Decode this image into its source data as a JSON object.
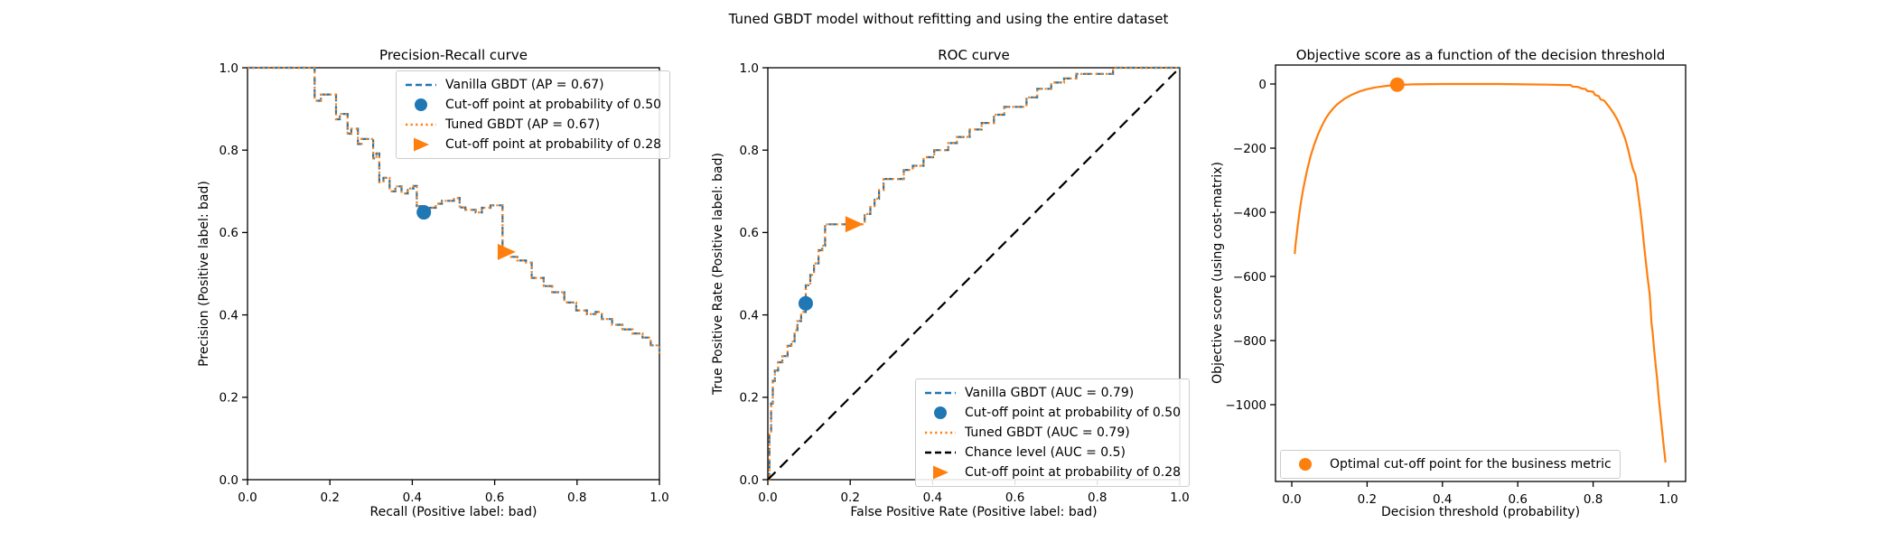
{
  "figure": {
    "title": "Tuned GBDT model without refitting and using the entire dataset"
  },
  "colors": {
    "vanilla_blue": "#1f77b4",
    "tuned_orange": "#ff7f0e",
    "chance_black": "#000000",
    "spine": "#000000",
    "legend_border": "#cccccc"
  },
  "chart_data": [
    {
      "type": "line",
      "title": "Precision-Recall curve",
      "xlabel": "Recall (Positive label: bad)",
      "ylabel": "Precision (Positive label: bad)",
      "xlim": [
        0,
        1
      ],
      "ylim": [
        0,
        1
      ],
      "grid": false,
      "legend_position": "top-right",
      "xticks": {
        "values": [
          0,
          0.2,
          0.4,
          0.6,
          0.8,
          1.0
        ],
        "labels": [
          "0.0",
          "0.2",
          "0.4",
          "0.6",
          "0.8",
          "1.0"
        ]
      },
      "yticks": {
        "values": [
          0,
          0.2,
          0.4,
          0.6,
          0.8,
          1.0
        ],
        "labels": [
          "0.0",
          "0.2",
          "0.4",
          "0.6",
          "0.8",
          "1.0"
        ]
      },
      "curve": [
        [
          0,
          1
        ],
        [
          0.163,
          1
        ],
        [
          0.163,
          0.92
        ],
        [
          0.178,
          0.92
        ],
        [
          0.178,
          0.935
        ],
        [
          0.215,
          0.935
        ],
        [
          0.215,
          0.875
        ],
        [
          0.224,
          0.875
        ],
        [
          0.224,
          0.888
        ],
        [
          0.243,
          0.888
        ],
        [
          0.243,
          0.84
        ],
        [
          0.252,
          0.84
        ],
        [
          0.252,
          0.852
        ],
        [
          0.268,
          0.852
        ],
        [
          0.268,
          0.815
        ],
        [
          0.277,
          0.815
        ],
        [
          0.277,
          0.827
        ],
        [
          0.305,
          0.827
        ],
        [
          0.305,
          0.78
        ],
        [
          0.313,
          0.78
        ],
        [
          0.313,
          0.792
        ],
        [
          0.32,
          0.792
        ],
        [
          0.32,
          0.722
        ],
        [
          0.33,
          0.722
        ],
        [
          0.33,
          0.733
        ],
        [
          0.345,
          0.733
        ],
        [
          0.345,
          0.7
        ],
        [
          0.359,
          0.7
        ],
        [
          0.359,
          0.712
        ],
        [
          0.374,
          0.712
        ],
        [
          0.374,
          0.695
        ],
        [
          0.389,
          0.695
        ],
        [
          0.389,
          0.707
        ],
        [
          0.403,
          0.707
        ],
        [
          0.403,
          0.713
        ],
        [
          0.411,
          0.713
        ],
        [
          0.411,
          0.664
        ],
        [
          0.425,
          0.664
        ],
        [
          0.425,
          0.649
        ],
        [
          0.443,
          0.649
        ],
        [
          0.443,
          0.66
        ],
        [
          0.457,
          0.66
        ],
        [
          0.457,
          0.67
        ],
        [
          0.472,
          0.67
        ],
        [
          0.472,
          0.677
        ],
        [
          0.501,
          0.677
        ],
        [
          0.501,
          0.684
        ],
        [
          0.515,
          0.684
        ],
        [
          0.515,
          0.661
        ],
        [
          0.529,
          0.661
        ],
        [
          0.529,
          0.655
        ],
        [
          0.554,
          0.655
        ],
        [
          0.554,
          0.649
        ],
        [
          0.569,
          0.649
        ],
        [
          0.569,
          0.66
        ],
        [
          0.59,
          0.66
        ],
        [
          0.59,
          0.666
        ],
        [
          0.619,
          0.666
        ],
        [
          0.619,
          0.553
        ],
        [
          0.64,
          0.553
        ],
        [
          0.64,
          0.541
        ],
        [
          0.655,
          0.541
        ],
        [
          0.655,
          0.532
        ],
        [
          0.676,
          0.532
        ],
        [
          0.676,
          0.527
        ],
        [
          0.69,
          0.527
        ],
        [
          0.69,
          0.49
        ],
        [
          0.719,
          0.49
        ],
        [
          0.719,
          0.47
        ],
        [
          0.74,
          0.47
        ],
        [
          0.74,
          0.455
        ],
        [
          0.769,
          0.455
        ],
        [
          0.769,
          0.43
        ],
        [
          0.798,
          0.43
        ],
        [
          0.798,
          0.411
        ],
        [
          0.824,
          0.411
        ],
        [
          0.824,
          0.402
        ],
        [
          0.845,
          0.402
        ],
        [
          0.845,
          0.407
        ],
        [
          0.86,
          0.407
        ],
        [
          0.86,
          0.39
        ],
        [
          0.885,
          0.39
        ],
        [
          0.885,
          0.376
        ],
        [
          0.91,
          0.376
        ],
        [
          0.91,
          0.365
        ],
        [
          0.935,
          0.365
        ],
        [
          0.935,
          0.355
        ],
        [
          0.959,
          0.355
        ],
        [
          0.959,
          0.345
        ],
        [
          0.979,
          0.345
        ],
        [
          0.979,
          0.326
        ],
        [
          1,
          0.326
        ],
        [
          1,
          0.302
        ]
      ],
      "series": [
        {
          "name": "Vanilla GBDT (AP = 0.67)",
          "style": "dashed",
          "color": "#1f77b4",
          "use_curve": true
        },
        {
          "name": "Tuned GBDT (AP = 0.67)",
          "style": "dotted",
          "color": "#ff7f0e",
          "use_curve": true
        }
      ],
      "markers": [
        {
          "shape": "circle",
          "color": "#1f77b4",
          "x": 0.428,
          "y": 0.649,
          "label": "Cut-off point at probability of 0.50"
        },
        {
          "shape": "triangle",
          "color": "#ff7f0e",
          "x": 0.627,
          "y": 0.553,
          "label": "Cut-off point at probability of 0.28"
        }
      ],
      "legend": [
        {
          "swatch": "dashed",
          "color": "#1f77b4",
          "label": "Vanilla GBDT (AP = 0.67)"
        },
        {
          "swatch": "circle",
          "color": "#1f77b4",
          "label": "Cut-off point at probability of 0.50"
        },
        {
          "swatch": "dotted",
          "color": "#ff7f0e",
          "label": "Tuned GBDT (AP = 0.67)"
        },
        {
          "swatch": "triangle",
          "color": "#ff7f0e",
          "label": "Cut-off point at probability of 0.28"
        }
      ]
    },
    {
      "type": "line",
      "title": "ROC curve",
      "xlabel": "False Positive Rate (Positive label: bad)",
      "ylabel": "True Positive Rate (Positive label: bad)",
      "xlim": [
        0,
        1
      ],
      "ylim": [
        0,
        1
      ],
      "grid": false,
      "legend_position": "bottom-right",
      "xticks": {
        "values": [
          0,
          0.2,
          0.4,
          0.6,
          0.8,
          1.0
        ],
        "labels": [
          "0.0",
          "0.2",
          "0.4",
          "0.6",
          "0.8",
          "1.0"
        ]
      },
      "yticks": {
        "values": [
          0,
          0.2,
          0.4,
          0.6,
          0.8,
          1.0
        ],
        "labels": [
          "0.0",
          "0.2",
          "0.4",
          "0.6",
          "0.8",
          "1.0"
        ]
      },
      "curve": [
        [
          0,
          0
        ],
        [
          0.004,
          0
        ],
        [
          0.004,
          0.11
        ],
        [
          0.008,
          0.11
        ],
        [
          0.008,
          0.185
        ],
        [
          0.012,
          0.185
        ],
        [
          0.012,
          0.24
        ],
        [
          0.017,
          0.24
        ],
        [
          0.017,
          0.265
        ],
        [
          0.025,
          0.265
        ],
        [
          0.025,
          0.285
        ],
        [
          0.035,
          0.285
        ],
        [
          0.035,
          0.3
        ],
        [
          0.048,
          0.3
        ],
        [
          0.048,
          0.325
        ],
        [
          0.057,
          0.325
        ],
        [
          0.057,
          0.335
        ],
        [
          0.065,
          0.335
        ],
        [
          0.065,
          0.363
        ],
        [
          0.072,
          0.363
        ],
        [
          0.072,
          0.385
        ],
        [
          0.081,
          0.385
        ],
        [
          0.081,
          0.407
        ],
        [
          0.092,
          0.407
        ],
        [
          0.092,
          0.472
        ],
        [
          0.103,
          0.472
        ],
        [
          0.103,
          0.497
        ],
        [
          0.112,
          0.497
        ],
        [
          0.112,
          0.525
        ],
        [
          0.123,
          0.525
        ],
        [
          0.123,
          0.557
        ],
        [
          0.132,
          0.557
        ],
        [
          0.132,
          0.568
        ],
        [
          0.139,
          0.568
        ],
        [
          0.139,
          0.62
        ],
        [
          0.235,
          0.62
        ],
        [
          0.235,
          0.645
        ],
        [
          0.249,
          0.645
        ],
        [
          0.249,
          0.662
        ],
        [
          0.259,
          0.662
        ],
        [
          0.259,
          0.682
        ],
        [
          0.27,
          0.682
        ],
        [
          0.27,
          0.703
        ],
        [
          0.281,
          0.703
        ],
        [
          0.281,
          0.73
        ],
        [
          0.33,
          0.73
        ],
        [
          0.33,
          0.752
        ],
        [
          0.352,
          0.752
        ],
        [
          0.352,
          0.762
        ],
        [
          0.378,
          0.762
        ],
        [
          0.378,
          0.783
        ],
        [
          0.404,
          0.783
        ],
        [
          0.404,
          0.8
        ],
        [
          0.438,
          0.8
        ],
        [
          0.438,
          0.817
        ],
        [
          0.459,
          0.817
        ],
        [
          0.459,
          0.832
        ],
        [
          0.49,
          0.832
        ],
        [
          0.49,
          0.85
        ],
        [
          0.519,
          0.85
        ],
        [
          0.519,
          0.866
        ],
        [
          0.549,
          0.866
        ],
        [
          0.549,
          0.886
        ],
        [
          0.574,
          0.886
        ],
        [
          0.574,
          0.905
        ],
        [
          0.628,
          0.905
        ],
        [
          0.628,
          0.928
        ],
        [
          0.654,
          0.928
        ],
        [
          0.654,
          0.949
        ],
        [
          0.688,
          0.949
        ],
        [
          0.688,
          0.964
        ],
        [
          0.719,
          0.964
        ],
        [
          0.719,
          0.974
        ],
        [
          0.749,
          0.974
        ],
        [
          0.749,
          0.985
        ],
        [
          0.838,
          0.985
        ],
        [
          0.838,
          1
        ],
        [
          1,
          1
        ]
      ],
      "series": [
        {
          "name": "Vanilla GBDT (AUC = 0.79)",
          "style": "dashed",
          "color": "#1f77b4",
          "use_curve": true
        },
        {
          "name": "Tuned GBDT (AUC = 0.79)",
          "style": "dotted",
          "color": "#ff7f0e",
          "use_curve": true
        },
        {
          "name": "Chance level (AUC = 0.5)",
          "style": "dashed-long",
          "color": "#000000",
          "points": [
            [
              0,
              0
            ],
            [
              1,
              1
            ]
          ]
        }
      ],
      "markers": [
        {
          "shape": "circle",
          "color": "#1f77b4",
          "x": 0.092,
          "y": 0.428,
          "label": "Cut-off point at probability of 0.50"
        },
        {
          "shape": "triangle",
          "color": "#ff7f0e",
          "x": 0.208,
          "y": 0.62,
          "label": "Cut-off point at probability of 0.28"
        }
      ],
      "legend": [
        {
          "swatch": "dashed",
          "color": "#1f77b4",
          "label": "Vanilla GBDT (AUC = 0.79)"
        },
        {
          "swatch": "circle",
          "color": "#1f77b4",
          "label": "Cut-off point at probability of 0.50"
        },
        {
          "swatch": "dotted",
          "color": "#ff7f0e",
          "label": "Tuned GBDT (AUC = 0.79)"
        },
        {
          "swatch": "dashed",
          "color": "#000000",
          "label": "Chance level (AUC = 0.5)"
        },
        {
          "swatch": "triangle",
          "color": "#ff7f0e",
          "label": "Cut-off point at probability of 0.28"
        }
      ]
    },
    {
      "type": "line",
      "title": "Objective score as a function of the decision threshold",
      "xlabel": "Decision threshold (probability)",
      "ylabel": "Objective score (using cost-matrix)",
      "xlim": [
        -0.045,
        1.045
      ],
      "ylim": [
        -1240,
        60
      ],
      "grid": false,
      "legend_position": "bottom-left",
      "xticks": {
        "values": [
          0,
          0.2,
          0.4,
          0.6,
          0.8,
          1.0
        ],
        "labels": [
          "0.0",
          "0.2",
          "0.4",
          "0.6",
          "0.8",
          "1.0"
        ]
      },
      "yticks": {
        "values": [
          0,
          -200,
          -400,
          -600,
          -800,
          -1000
        ],
        "labels": [
          "0",
          "−200",
          "−400",
          "−600",
          "−800",
          "−1000"
        ]
      },
      "curve": [
        [
          0.008,
          -530
        ],
        [
          0.01,
          -500
        ],
        [
          0.015,
          -450
        ],
        [
          0.02,
          -405
        ],
        [
          0.025,
          -365
        ],
        [
          0.03,
          -330
        ],
        [
          0.04,
          -272
        ],
        [
          0.05,
          -225
        ],
        [
          0.06,
          -188
        ],
        [
          0.07,
          -156
        ],
        [
          0.08,
          -130
        ],
        [
          0.09,
          -108
        ],
        [
          0.1,
          -90
        ],
        [
          0.11,
          -76
        ],
        [
          0.12,
          -64
        ],
        [
          0.14,
          -46
        ],
        [
          0.16,
          -33
        ],
        [
          0.18,
          -23
        ],
        [
          0.2,
          -16
        ],
        [
          0.22,
          -11
        ],
        [
          0.25,
          -6
        ],
        [
          0.28,
          -3
        ],
        [
          0.32,
          -1
        ],
        [
          0.4,
          0
        ],
        [
          0.55,
          0
        ],
        [
          0.62,
          -1
        ],
        [
          0.68,
          -2
        ],
        [
          0.72,
          -3
        ],
        [
          0.74,
          -3
        ],
        [
          0.745,
          -8
        ],
        [
          0.76,
          -9
        ],
        [
          0.77,
          -14
        ],
        [
          0.78,
          -16
        ],
        [
          0.785,
          -22
        ],
        [
          0.8,
          -24
        ],
        [
          0.805,
          -34
        ],
        [
          0.815,
          -38
        ],
        [
          0.82,
          -48
        ],
        [
          0.83,
          -52
        ],
        [
          0.835,
          -60
        ],
        [
          0.845,
          -75
        ],
        [
          0.855,
          -92
        ],
        [
          0.865,
          -112
        ],
        [
          0.875,
          -140
        ],
        [
          0.885,
          -170
        ],
        [
          0.893,
          -205
        ],
        [
          0.9,
          -240
        ],
        [
          0.905,
          -262
        ],
        [
          0.908,
          -272
        ],
        [
          0.912,
          -282
        ],
        [
          0.916,
          -310
        ],
        [
          0.92,
          -345
        ],
        [
          0.925,
          -390
        ],
        [
          0.93,
          -440
        ],
        [
          0.935,
          -500
        ],
        [
          0.94,
          -555
        ],
        [
          0.945,
          -608
        ],
        [
          0.95,
          -655
        ],
        [
          0.953,
          -705
        ],
        [
          0.955,
          -745
        ],
        [
          0.958,
          -775
        ],
        [
          0.962,
          -830
        ],
        [
          0.966,
          -875
        ],
        [
          0.97,
          -920
        ],
        [
          0.973,
          -960
        ],
        [
          0.976,
          -1000
        ],
        [
          0.98,
          -1045
        ],
        [
          0.984,
          -1090
        ],
        [
          0.987,
          -1125
        ],
        [
          0.99,
          -1155
        ],
        [
          0.992,
          -1180
        ]
      ],
      "series": [
        {
          "name": "Objective score",
          "style": "solid",
          "color": "#ff7f0e",
          "use_curve": true
        }
      ],
      "markers": [
        {
          "shape": "circle",
          "color": "#ff7f0e",
          "x": 0.28,
          "y": -2,
          "label": "Optimal cut-off point for the business metric"
        }
      ],
      "legend": [
        {
          "swatch": "circle",
          "color": "#ff7f0e",
          "label": "Optimal cut-off point for the business metric"
        }
      ]
    }
  ]
}
